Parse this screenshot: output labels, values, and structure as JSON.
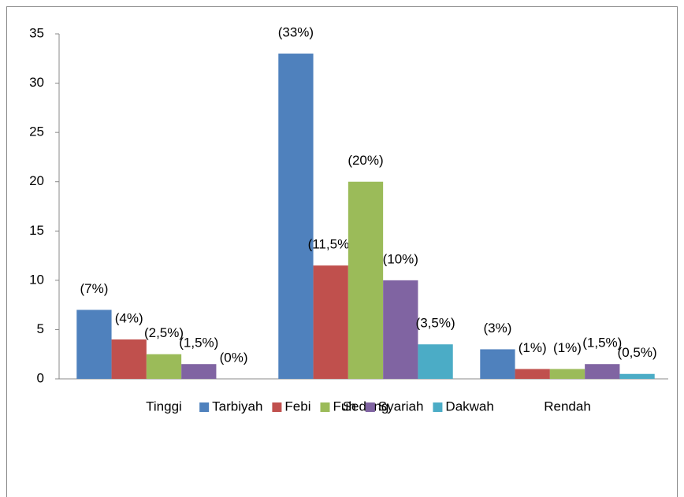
{
  "chart_data": {
    "type": "bar",
    "categories": [
      "Tinggi",
      "Sedang",
      "Rendah"
    ],
    "series": [
      {
        "name": "Tarbiyah",
        "color": "#4f81bd",
        "values": [
          7,
          33,
          3
        ],
        "value_labels": [
          "(7%)",
          "(33%)",
          "(3%)"
        ]
      },
      {
        "name": "Febi",
        "color": "#c0504d",
        "values": [
          4,
          11.5,
          1
        ],
        "value_labels": [
          "(4%)",
          "(11,5%)",
          "(1%)"
        ]
      },
      {
        "name": "Fuh",
        "color": "#9bbb59",
        "values": [
          2.5,
          20,
          1
        ],
        "value_labels": [
          "(2,5%)",
          "(20%)",
          "(1%)"
        ]
      },
      {
        "name": "Syariah",
        "color": "#8064a2",
        "values": [
          1.5,
          10,
          1.5
        ],
        "value_labels": [
          "(1,5%)",
          "(10%)",
          "(1,5%)"
        ]
      },
      {
        "name": "Dakwah",
        "color": "#4bacc6",
        "values": [
          0,
          3.5,
          0.5
        ],
        "value_labels": [
          "(0%)",
          "(3,5%)",
          "(0,5%)"
        ]
      }
    ],
    "ylim": [
      0,
      35
    ],
    "yticks": [
      0,
      5,
      10,
      15,
      20,
      25,
      30,
      35
    ],
    "grid": false,
    "legend": "bottom"
  }
}
